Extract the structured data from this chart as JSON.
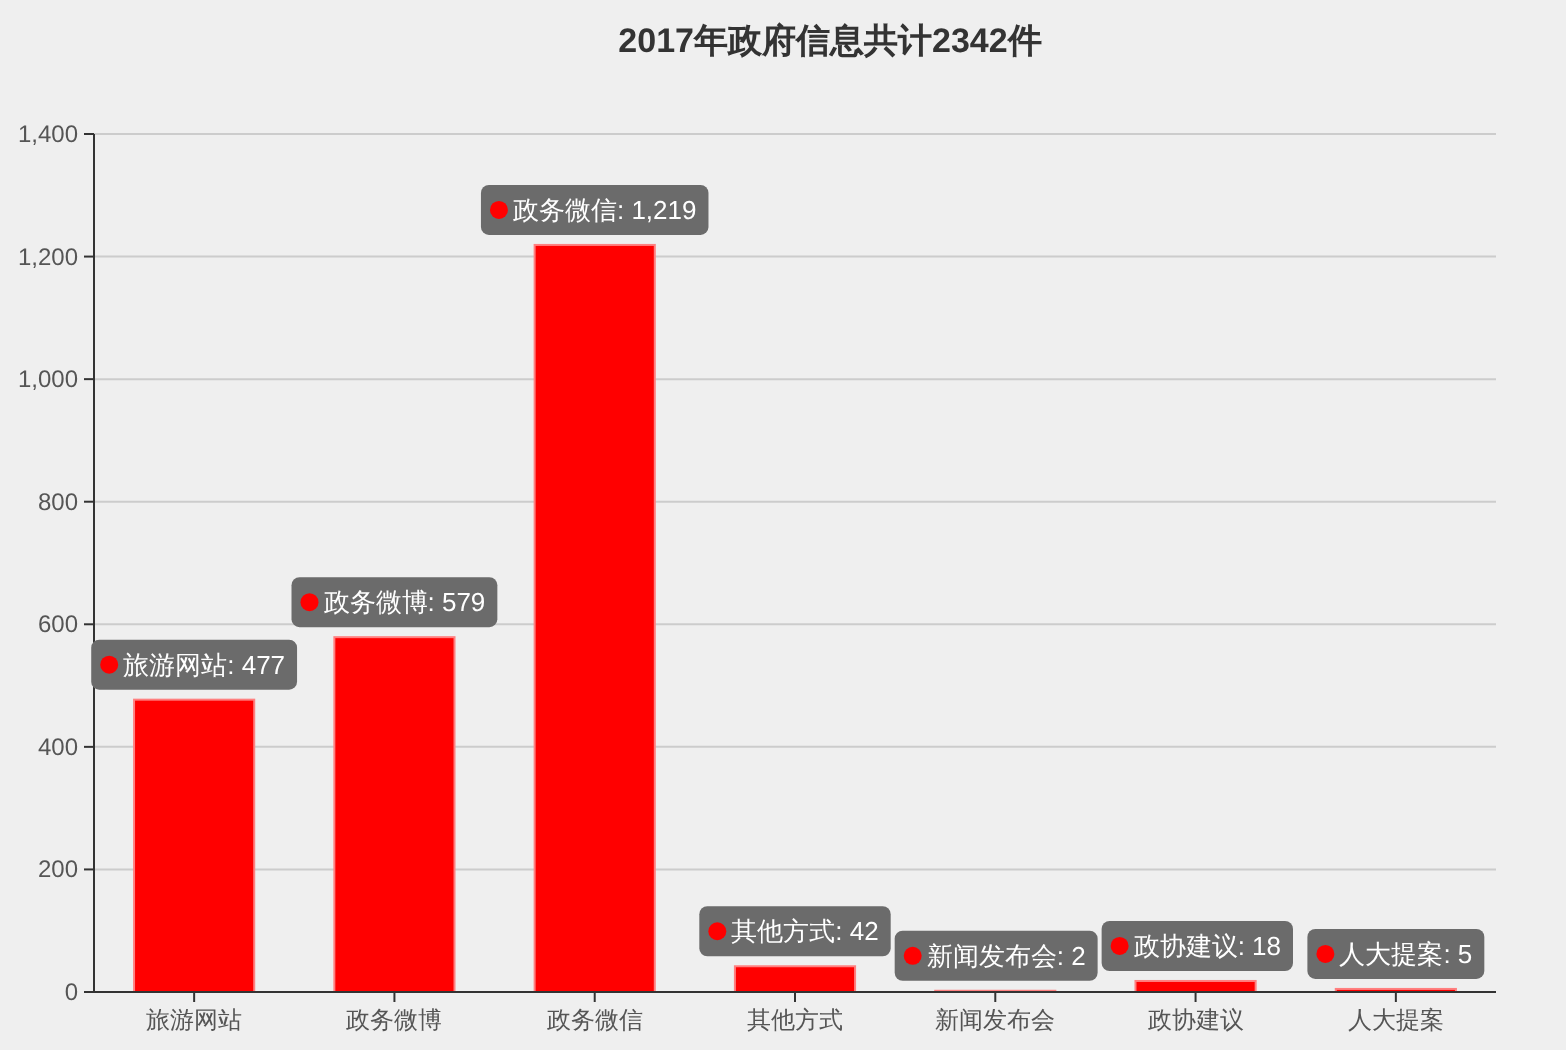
{
  "chart_data": {
    "type": "bar",
    "title": "2017年政府信息共计2342件",
    "categories": [
      "旅游网站",
      "政务微博",
      "政务微信",
      "其他方式",
      "新闻发布会",
      "政协建议",
      "人大提案"
    ],
    "values": [
      477,
      579,
      1219,
      42,
      2,
      18,
      5
    ],
    "color": "#ff0000",
    "value_labels": [
      "旅游网站: 477",
      "政务微博: 579",
      "政务微信: 1,219",
      "其他方式: 42",
      "新闻发布会: 2",
      "政协建议: 18",
      "人大提案: 5"
    ],
    "ylim": [
      0,
      1400
    ],
    "yticks": [
      0,
      200,
      400,
      600,
      800,
      {
        "value": 1000,
        "label": "1,000"
      },
      {
        "value": 1200,
        "label": "1,200"
      },
      {
        "value": 1400,
        "label": "1,400"
      }
    ],
    "grid": "y"
  }
}
